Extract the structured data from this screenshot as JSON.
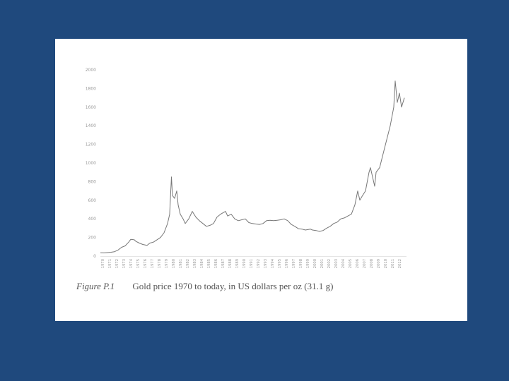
{
  "slide": {
    "background": "#1f497d"
  },
  "figure": {
    "label": "Figure P.1",
    "caption": "Gold price 1970 to today, in US dollars per oz (31.1 g)"
  },
  "chart_data": {
    "type": "line",
    "title": "",
    "xlabel": "",
    "ylabel": "",
    "ylim": [
      0,
      2000
    ],
    "xlim": [
      1970,
      2013.3
    ],
    "yticks": [
      0,
      200,
      400,
      600,
      800,
      1000,
      1200,
      1400,
      1600,
      1800,
      2000
    ],
    "xticks": [
      "1970",
      "1971",
      "1972",
      "1973",
      "1974",
      "1975",
      "1976",
      "1977",
      "1978",
      "1979",
      "1980",
      "1981",
      "1982",
      "1983",
      "1984",
      "1985",
      "1986",
      "1987",
      "1988",
      "1989",
      "1990",
      "1991",
      "1992",
      "1993",
      "1994",
      "1995",
      "1996",
      "1997",
      "1998",
      "1999",
      "2000",
      "2001",
      "2002",
      "2003",
      "2004",
      "2005",
      "2006",
      "2007",
      "2008",
      "2009",
      "2010",
      "2011",
      "2012"
    ],
    "grid": false,
    "line_color": "#777777",
    "series": [
      {
        "x": [
          1970,
          1970.5,
          1971,
          1971.5,
          1972,
          1972.5,
          1973,
          1973.5,
          1974,
          1974.3,
          1974.8,
          1975,
          1975.5,
          1976,
          1976.6,
          1977,
          1977.5,
          1978,
          1978.5,
          1979,
          1979.5,
          1979.8,
          1980.05,
          1980.2,
          1980.5,
          1980.8,
          1981,
          1981.3,
          1981.7,
          1982,
          1982.5,
          1983,
          1983.5,
          1984,
          1984.5,
          1985,
          1985.5,
          1986,
          1986.5,
          1987,
          1987.7,
          1988,
          1988.5,
          1989,
          1989.5,
          1990,
          1990.5,
          1991,
          1991.5,
          1992,
          1992.5,
          1993,
          1993.5,
          1994,
          1994.5,
          1995,
          1995.5,
          1996,
          1996.5,
          1997,
          1997.5,
          1998,
          1998.5,
          1999,
          1999.7,
          2000,
          2000.5,
          2001,
          2001.5,
          2002,
          2002.5,
          2003,
          2003.5,
          2004,
          2004.5,
          2005,
          2005.5,
          2006,
          2006.4,
          2006.7,
          2007,
          2007.5,
          2008,
          2008.2,
          2008.8,
          2009,
          2009.5,
          2010,
          2010.5,
          2011,
          2011.5,
          2011.7,
          2012,
          2012.3,
          2012.6,
          2013
        ],
        "y": [
          36,
          35,
          38,
          42,
          48,
          65,
          95,
          110,
          150,
          180,
          175,
          160,
          140,
          125,
          115,
          140,
          150,
          175,
          200,
          250,
          350,
          450,
          850,
          650,
          620,
          700,
          550,
          450,
          400,
          350,
          400,
          480,
          420,
          380,
          350,
          320,
          330,
          350,
          420,
          450,
          480,
          430,
          450,
          400,
          380,
          390,
          400,
          360,
          350,
          345,
          340,
          350,
          380,
          385,
          380,
          385,
          390,
          400,
          380,
          340,
          320,
          295,
          290,
          280,
          290,
          280,
          275,
          265,
          275,
          300,
          320,
          350,
          365,
          400,
          410,
          430,
          450,
          550,
          700,
          600,
          640,
          700,
          900,
          950,
          750,
          900,
          950,
          1100,
          1250,
          1400,
          1600,
          1880,
          1650,
          1750,
          1600,
          1700
        ]
      }
    ]
  }
}
